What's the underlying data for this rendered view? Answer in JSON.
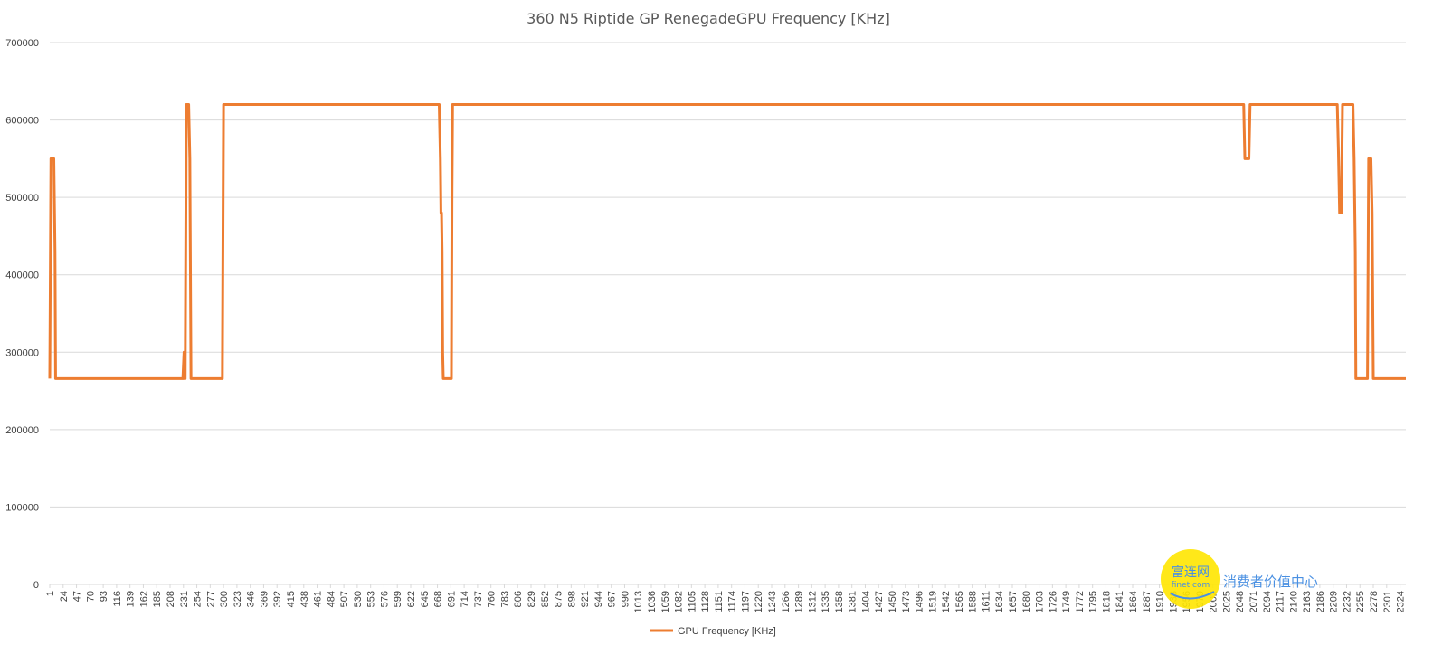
{
  "chart_data": {
    "type": "line",
    "title": "360 N5 Riptide GP RenegadeGPU Frequency [KHz]",
    "xlabel": "",
    "ylabel": "",
    "ylim": [
      0,
      700000
    ],
    "y_ticks": [
      0,
      100000,
      200000,
      300000,
      400000,
      500000,
      600000,
      700000
    ],
    "x_range": [
      1,
      2334
    ],
    "x_tick_labels": [
      1,
      24,
      47,
      70,
      93,
      116,
      139,
      162,
      185,
      208,
      231,
      254,
      277,
      300,
      323,
      346,
      369,
      392,
      415,
      438,
      461,
      484,
      507,
      530,
      553,
      576,
      599,
      622,
      645,
      668,
      691,
      714,
      737,
      760,
      783,
      806,
      829,
      852,
      875,
      898,
      921,
      944,
      967,
      990,
      1013,
      1036,
      1059,
      1082,
      1105,
      1128,
      1151,
      1174,
      1197,
      1220,
      1243,
      1266,
      1289,
      1312,
      1335,
      1358,
      1381,
      1404,
      1427,
      1450,
      1473,
      1496,
      1519,
      1542,
      1565,
      1588,
      1611,
      1634,
      1657,
      1680,
      1703,
      1726,
      1749,
      1772,
      1795,
      1818,
      1841,
      1864,
      1887,
      1910,
      1933,
      1956,
      1979,
      2002,
      2025,
      2048,
      2071,
      2094,
      2117,
      2140,
      2163,
      2186,
      2209,
      2232,
      2255,
      2278,
      2301,
      2324
    ],
    "grid": true,
    "legend": "bottom",
    "series": [
      {
        "name": "GPU Frequency [KHz]",
        "color": "#ED7D31",
        "points": [
          [
            1,
            266000
          ],
          [
            3,
            550000
          ],
          [
            8,
            550000
          ],
          [
            10,
            430000
          ],
          [
            11,
            266000
          ],
          [
            230,
            266000
          ],
          [
            232,
            300000
          ],
          [
            233,
            266000
          ],
          [
            234,
            266000
          ],
          [
            236,
            620000
          ],
          [
            240,
            620000
          ],
          [
            242,
            550000
          ],
          [
            244,
            266000
          ],
          [
            298,
            266000
          ],
          [
            300,
            620000
          ],
          [
            671,
            620000
          ],
          [
            673,
            550000
          ],
          [
            674,
            480000
          ],
          [
            675,
            480000
          ],
          [
            676,
            430000
          ],
          [
            677,
            300000
          ],
          [
            678,
            266000
          ],
          [
            692,
            266000
          ],
          [
            693,
            500000
          ],
          [
            694,
            620000
          ],
          [
            2055,
            620000
          ],
          [
            2057,
            550000
          ],
          [
            2064,
            550000
          ],
          [
            2066,
            620000
          ],
          [
            2216,
            620000
          ],
          [
            2218,
            560000
          ],
          [
            2220,
            480000
          ],
          [
            2223,
            480000
          ],
          [
            2225,
            620000
          ],
          [
            2243,
            620000
          ],
          [
            2245,
            550000
          ],
          [
            2247,
            430000
          ],
          [
            2248,
            266000
          ],
          [
            2268,
            266000
          ],
          [
            2270,
            550000
          ],
          [
            2274,
            550000
          ],
          [
            2276,
            480000
          ],
          [
            2278,
            266000
          ],
          [
            2334,
            266000
          ]
        ]
      }
    ]
  },
  "watermark": {
    "name": "富连网",
    "url": "finet.com",
    "slogan": "消费者价值中心",
    "colors": {
      "circle": "#FFE600",
      "text": "#4A90E2"
    }
  }
}
